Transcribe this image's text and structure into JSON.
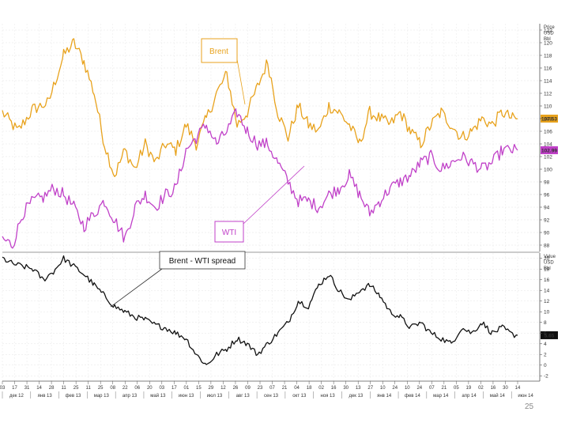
{
  "chart_data": [
    {
      "type": "line",
      "title": "",
      "units_label": [
        "Price",
        "USD",
        "Bbl"
      ],
      "ylim": [
        87,
        123
      ],
      "yticks": [
        88,
        90,
        92,
        94,
        96,
        98,
        100,
        102,
        104,
        106,
        108,
        110,
        112,
        114,
        116,
        118,
        120,
        122
      ],
      "ytick_labels": [
        "88",
        "90",
        "92",
        "94",
        "96",
        "98",
        "100",
        "102",
        "104",
        "106",
        "108",
        "110",
        "112",
        "114",
        "116",
        "118",
        "120",
        "122"
      ],
      "grid": true,
      "series": [
        {
          "name": "Brent",
          "color": "#E8A21C",
          "last_value_label": "107.53",
          "keypoints": [
            [
              0,
              109
            ],
            [
              3,
              106
            ],
            [
              6,
              109.5
            ],
            [
              9,
              110.5
            ],
            [
              12,
              118
            ],
            [
              14,
              120
            ],
            [
              16,
              117
            ],
            [
              18,
              112
            ],
            [
              20,
              104
            ],
            [
              22,
              99
            ],
            [
              24,
              103
            ],
            [
              26,
              100
            ],
            [
              28,
              104
            ],
            [
              30,
              101
            ],
            [
              32,
              104
            ],
            [
              34,
              103
            ],
            [
              36,
              107
            ],
            [
              38,
              104
            ],
            [
              40,
              108
            ],
            [
              42,
              112
            ],
            [
              44,
              115
            ],
            [
              46,
              107
            ],
            [
              48,
              109
            ],
            [
              50,
              113
            ],
            [
              52,
              117
            ],
            [
              54,
              109
            ],
            [
              56,
              105
            ],
            [
              58,
              110
            ],
            [
              60,
              107
            ],
            [
              62,
              106
            ],
            [
              64,
              110
            ],
            [
              66,
              109
            ],
            [
              68,
              107
            ],
            [
              70,
              104
            ],
            [
              72,
              109
            ],
            [
              74,
              108
            ],
            [
              76,
              107
            ],
            [
              78,
              109
            ],
            [
              80,
              106
            ],
            [
              82,
              104
            ],
            [
              84,
              107
            ],
            [
              86,
              109
            ],
            [
              88,
              107
            ],
            [
              90,
              105
            ],
            [
              92,
              106
            ],
            [
              94,
              108
            ],
            [
              96,
              107
            ],
            [
              98,
              109
            ],
            [
              100,
              108
            ],
            [
              101,
              108
            ]
          ]
        },
        {
          "name": "WTI",
          "color": "#C040C8",
          "last_value_label": "102.99",
          "keypoints": [
            [
              0,
              89
            ],
            [
              2,
              88
            ],
            [
              4,
              93
            ],
            [
              6,
              95
            ],
            [
              8,
              95.5
            ],
            [
              10,
              97
            ],
            [
              12,
              96
            ],
            [
              14,
              94
            ],
            [
              16,
              91
            ],
            [
              18,
              93
            ],
            [
              20,
              95
            ],
            [
              22,
              92
            ],
            [
              24,
              89
            ],
            [
              26,
              94
            ],
            [
              28,
              96
            ],
            [
              30,
              94
            ],
            [
              32,
              96
            ],
            [
              34,
              97
            ],
            [
              36,
              103
            ],
            [
              38,
              105
            ],
            [
              40,
              107
            ],
            [
              42,
              104
            ],
            [
              44,
              106
            ],
            [
              46,
              109
            ],
            [
              48,
              106
            ],
            [
              50,
              104
            ],
            [
              52,
              104
            ],
            [
              54,
              101
            ],
            [
              56,
              98
            ],
            [
              58,
              95
            ],
            [
              60,
              95
            ],
            [
              62,
              94
            ],
            [
              64,
              96
            ],
            [
              66,
              97
            ],
            [
              68,
              99
            ],
            [
              70,
              96
            ],
            [
              72,
              93
            ],
            [
              74,
              95
            ],
            [
              76,
              97
            ],
            [
              78,
              98
            ],
            [
              80,
              99
            ],
            [
              82,
              101
            ],
            [
              84,
              102
            ],
            [
              86,
              100
            ],
            [
              88,
              101
            ],
            [
              90,
              102
            ],
            [
              92,
              101
            ],
            [
              94,
              100
            ],
            [
              96,
              101
            ],
            [
              98,
              103
            ],
            [
              100,
              103
            ],
            [
              101,
              103
            ]
          ]
        }
      ],
      "annotations": [
        "Brent",
        "WTI"
      ]
    },
    {
      "type": "line",
      "title": "",
      "units_label": [
        "Value",
        "USD",
        "Bbl"
      ],
      "ylim": [
        -3,
        21
      ],
      "yticks": [
        -2,
        0,
        2,
        4,
        6,
        8,
        10,
        12,
        14,
        16,
        18,
        20
      ],
      "ytick_labels": [
        "-2",
        "0",
        "2",
        "4",
        "6",
        "8",
        "10",
        "12",
        "14",
        "16",
        "18",
        "20"
      ],
      "grid": true,
      "series": [
        {
          "name": "Brent - WTI spread",
          "color": "#111111",
          "last_value_label": "5.65",
          "keypoints": [
            [
              0,
              20
            ],
            [
              2,
              19
            ],
            [
              4,
              18.5
            ],
            [
              6,
              18
            ],
            [
              8,
              16
            ],
            [
              10,
              17.5
            ],
            [
              12,
              20
            ],
            [
              14,
              18.5
            ],
            [
              16,
              17
            ],
            [
              18,
              15
            ],
            [
              20,
              13
            ],
            [
              22,
              11
            ],
            [
              24,
              10
            ],
            [
              26,
              9
            ],
            [
              28,
              8.5
            ],
            [
              30,
              7.5
            ],
            [
              32,
              7
            ],
            [
              34,
              6
            ],
            [
              36,
              5
            ],
            [
              38,
              2
            ],
            [
              40,
              0
            ],
            [
              42,
              2
            ],
            [
              44,
              3
            ],
            [
              46,
              5
            ],
            [
              48,
              4
            ],
            [
              50,
              2
            ],
            [
              52,
              4
            ],
            [
              54,
              6
            ],
            [
              56,
              8
            ],
            [
              58,
              12
            ],
            [
              60,
              11
            ],
            [
              62,
              15
            ],
            [
              64,
              17
            ],
            [
              66,
              14
            ],
            [
              68,
              12
            ],
            [
              70,
              14
            ],
            [
              72,
              15
            ],
            [
              74,
              13
            ],
            [
              76,
              10
            ],
            [
              78,
              9
            ],
            [
              80,
              7
            ],
            [
              82,
              8
            ],
            [
              84,
              6
            ],
            [
              86,
              5
            ],
            [
              88,
              4
            ],
            [
              90,
              7
            ],
            [
              92,
              6
            ],
            [
              94,
              8
            ],
            [
              96,
              6
            ],
            [
              98,
              7
            ],
            [
              100,
              5.7
            ],
            [
              101,
              5.6
            ]
          ]
        }
      ],
      "annotations": [
        "Brent - WTI spread"
      ]
    }
  ],
  "x_axis": {
    "day_labels": [
      "03",
      "17",
      "31",
      "14",
      "28",
      "11",
      "25",
      "11",
      "25",
      "08",
      "22",
      "06",
      "20",
      "03",
      "17",
      "01",
      "15",
      "29",
      "12",
      "26",
      "09",
      "23",
      "07",
      "21",
      "04",
      "18",
      "02",
      "16",
      "30",
      "13",
      "27",
      "10",
      "24",
      "10",
      "24",
      "07",
      "21",
      "05",
      "19",
      "02",
      "16",
      "30",
      "14"
    ],
    "month_labels": [
      "дек 12",
      "янв 13",
      "фев 13",
      "мар 13",
      "апр 13",
      "май 13",
      "июн 13",
      "июл 13",
      "авг 13",
      "сен 13",
      "окт 13",
      "ноя 13",
      "дек 13",
      "янв 14",
      "фев 14",
      "мар 14",
      "апр 14",
      "май 14",
      "июн 14"
    ]
  },
  "page_number": "25"
}
